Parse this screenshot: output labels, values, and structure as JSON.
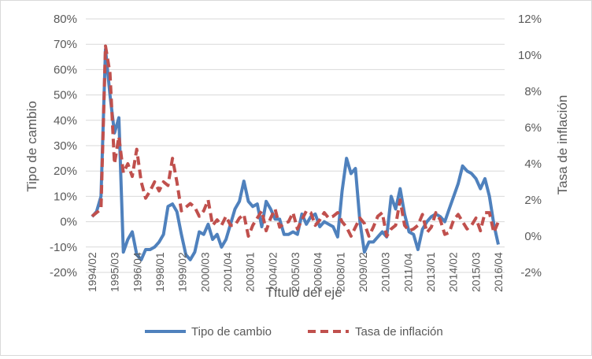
{
  "chart_data": {
    "type": "line",
    "title": "",
    "xlabel": "Título del eje",
    "ylabel_left": "Tipo de cambio",
    "ylabel_right": "Tasa de inflación",
    "y_left_ticks": [
      "80%",
      "70%",
      "60%",
      "50%",
      "40%",
      "30%",
      "20%",
      "10%",
      "0%",
      "-10%",
      "-20%"
    ],
    "y_left_range": [
      -0.2,
      0.8
    ],
    "y_right_ticks": [
      "12%",
      "10%",
      "8%",
      "6%",
      "4%",
      "2%",
      "0%",
      "-2%"
    ],
    "y_right_range": [
      -0.02,
      0.12
    ],
    "x_tick_labels": [
      "1994/02",
      "1995/03",
      "1996/04",
      "1998/01",
      "1999/02",
      "2000/03",
      "2001/04",
      "2003/01",
      "2004/02",
      "2005/03",
      "2006/04",
      "2008/01",
      "2009/02",
      "2010/03",
      "2011/04",
      "2013/01",
      "2014/02",
      "2015/03",
      "2016/04"
    ],
    "legend_position": "bottom",
    "grid": "horizontal",
    "series": [
      {
        "name": "Tipo de cambio",
        "axis": "left",
        "color": "#4f81bd",
        "style": "solid",
        "values": [
          0.02,
          0.04,
          0.1,
          0.68,
          0.5,
          0.35,
          0.41,
          -0.12,
          -0.07,
          -0.04,
          -0.13,
          -0.15,
          -0.11,
          -0.11,
          -0.1,
          -0.08,
          -0.05,
          0.06,
          0.07,
          0.04,
          -0.05,
          -0.13,
          -0.15,
          -0.12,
          -0.04,
          -0.05,
          -0.01,
          -0.07,
          -0.05,
          -0.1,
          -0.07,
          -0.01,
          0.05,
          0.08,
          0.16,
          0.08,
          0.06,
          0.07,
          -0.02,
          0.08,
          0.05,
          0.01,
          0.01,
          -0.05,
          -0.05,
          -0.04,
          -0.05,
          0.03,
          -0.01,
          0.02,
          0.03,
          -0.02,
          0.0,
          -0.01,
          -0.02,
          -0.06,
          0.12,
          0.25,
          0.19,
          0.21,
          0.0,
          -0.12,
          -0.08,
          -0.08,
          -0.06,
          -0.04,
          -0.06,
          0.1,
          0.05,
          0.13,
          0.03,
          -0.04,
          -0.05,
          -0.11,
          -0.03,
          0.0,
          0.02,
          0.03,
          0.02,
          0.0,
          0.05,
          0.1,
          0.15,
          0.22,
          0.2,
          0.19,
          0.17,
          0.13,
          0.17,
          0.1,
          -0.01,
          -0.09
        ]
      },
      {
        "name": "Tasa de inflación",
        "axis": "right",
        "color": "#c0504d",
        "style": "dashed",
        "values": [
          0.011,
          0.013,
          0.015,
          0.105,
          0.09,
          0.04,
          0.055,
          0.035,
          0.04,
          0.033,
          0.048,
          0.03,
          0.021,
          0.025,
          0.03,
          0.025,
          0.03,
          0.028,
          0.043,
          0.03,
          0.014,
          0.016,
          0.018,
          0.016,
          0.011,
          0.014,
          0.02,
          0.006,
          0.009,
          0.006,
          0.011,
          0.006,
          0.006,
          0.01,
          0.012,
          0.0,
          0.006,
          0.01,
          0.014,
          0.003,
          0.01,
          0.015,
          0.005,
          0.007,
          0.008,
          0.013,
          0.004,
          0.009,
          0.014,
          0.013,
          0.006,
          0.009,
          0.013,
          0.01,
          0.011,
          0.013,
          0.008,
          0.005,
          0.0,
          0.005,
          0.01,
          0.007,
          0.0,
          0.005,
          0.011,
          0.013,
          0.0,
          0.004,
          0.006,
          0.02,
          0.006,
          0.003,
          0.004,
          0.006,
          0.012,
          0.002,
          0.005,
          0.013,
          0.009,
          0.001,
          0.002,
          0.009,
          0.012,
          0.008,
          0.004,
          0.006,
          0.01,
          0.003,
          0.013,
          0.013,
          0.002,
          0.008
        ]
      }
    ]
  }
}
